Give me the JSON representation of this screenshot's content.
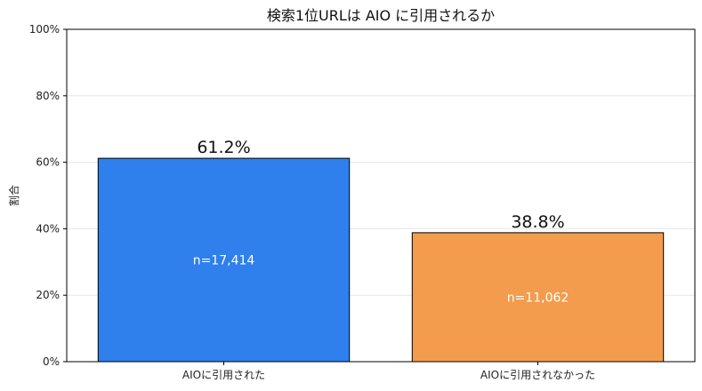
{
  "chart_data": {
    "type": "bar",
    "title": "検索1位URLは AIO に引用されるか",
    "xlabel": "",
    "ylabel": "割合",
    "categories": [
      "AIOに引用された",
      "AIOに引用されなかった"
    ],
    "values": [
      61.2,
      38.8
    ],
    "value_labels": [
      "61.2%",
      "38.8%"
    ],
    "count_labels": [
      "n=17,414",
      "n=11,062"
    ],
    "colors": [
      "#2f7fed",
      "#f39c4d"
    ],
    "ylim": [
      0,
      100
    ],
    "yticks": [
      0,
      20,
      40,
      60,
      80,
      100
    ],
    "ytick_labels": [
      "0%",
      "20%",
      "40%",
      "60%",
      "80%",
      "100%"
    ],
    "grid": true,
    "legend": "none"
  }
}
